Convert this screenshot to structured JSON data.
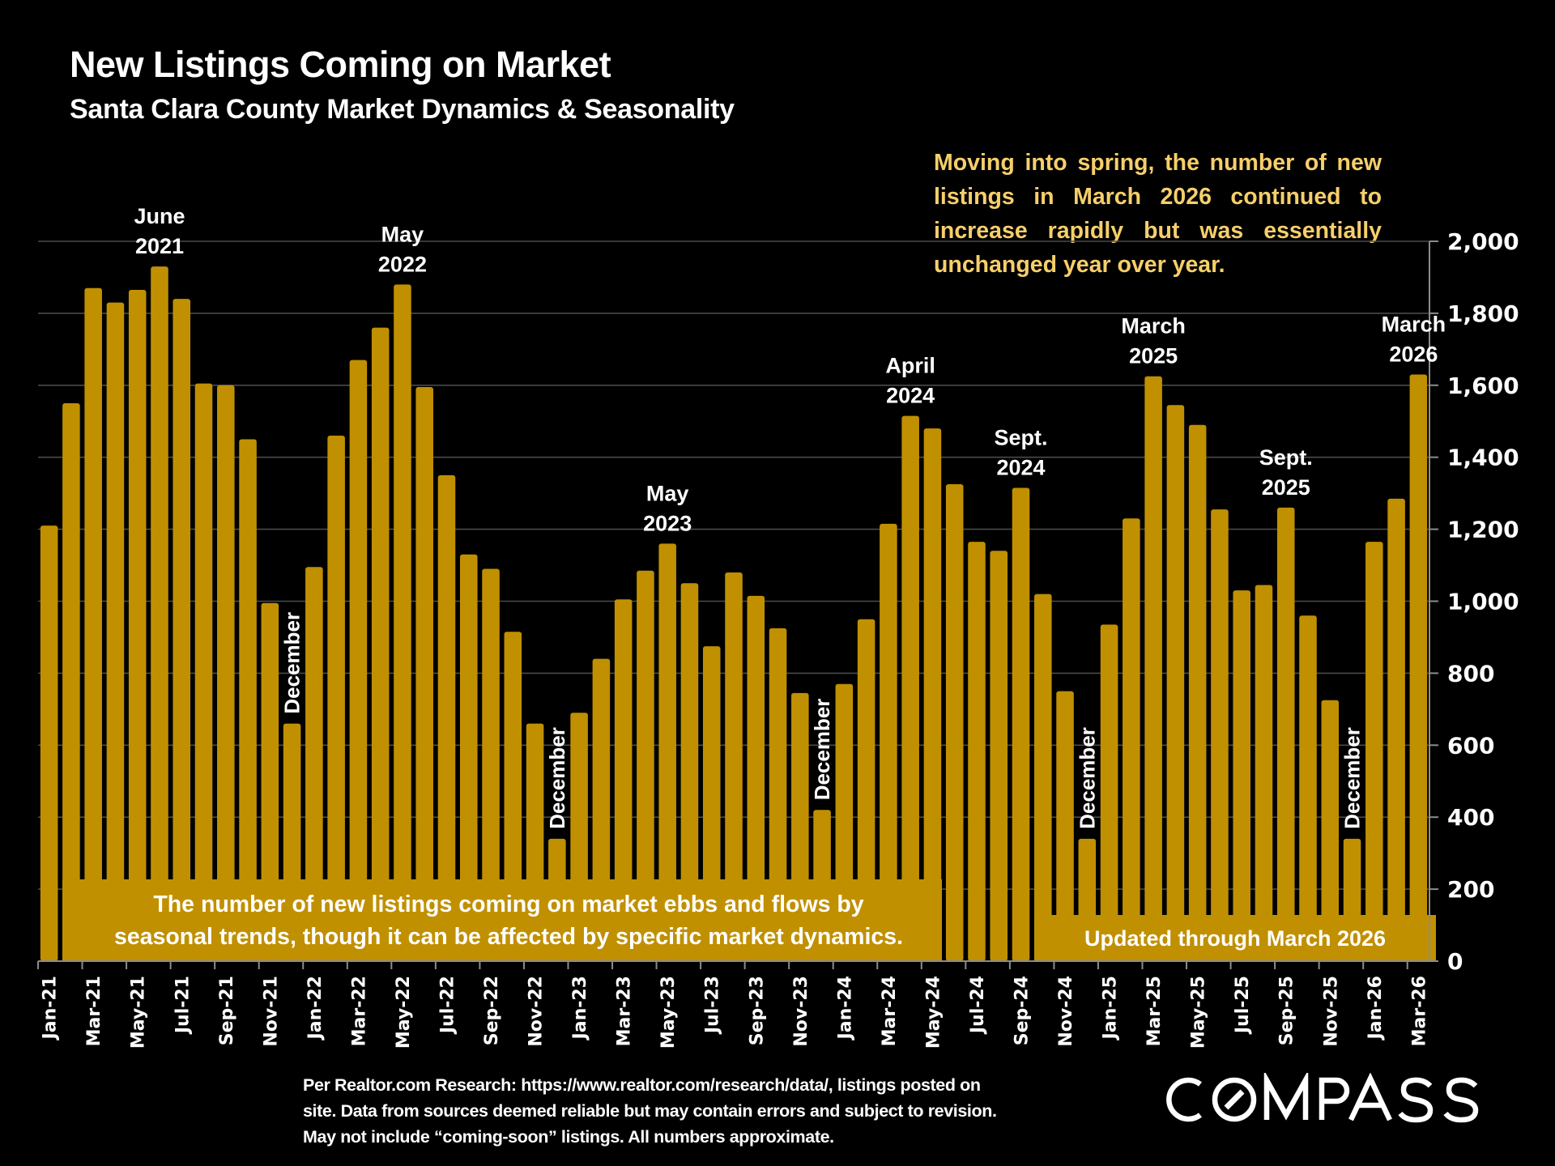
{
  "header": {
    "title": "New Listings Coming on Market",
    "subtitle": "Santa Clara County Market Dynamics & Seasonality"
  },
  "note": "Moving into spring, the number of new listings in March 2026 continued to increase rapidly but was essentially unchanged year over year.",
  "footnote": {
    "lines": [
      "Per Realtor.com Research:  https://www.realtor.com/research/data/, listings posted on",
      "site. Data from sources deemed reliable but may contain errors and subject to revision.",
      "May not include “coming-soon” listings. All numbers approximate."
    ]
  },
  "logo": {
    "text": "COMPASS",
    "icon": "compass-o-slash-icon"
  },
  "colors": {
    "bar": "#c09000",
    "background": "#000000",
    "note_text": "#f6cf6b",
    "grid": "#4a4a4a",
    "axis": "#8c8c8c"
  },
  "chart_data": {
    "type": "bar",
    "title": "New Listings Coming on Market",
    "subtitle": "Santa Clara County Market Dynamics & Seasonality",
    "xlabel": "",
    "ylabel": "",
    "ylim": [
      0,
      2000
    ],
    "y_ticks": [
      0,
      200,
      400,
      600,
      800,
      1000,
      1200,
      1400,
      1600,
      1800,
      2000
    ],
    "y_tick_labels": [
      "0",
      "200",
      "400",
      "600",
      "800",
      "1,000",
      "1,200",
      "1,400",
      "1,600",
      "1,800",
      "2,000"
    ],
    "y_axis_side": "right",
    "grid": true,
    "legend": "none",
    "categories": [
      "Jan-21",
      "Feb-21",
      "Mar-21",
      "Apr-21",
      "May-21",
      "Jun-21",
      "Jul-21",
      "Aug-21",
      "Sep-21",
      "Oct-21",
      "Nov-21",
      "Dec-21",
      "Jan-22",
      "Feb-22",
      "Mar-22",
      "Apr-22",
      "May-22",
      "Jun-22",
      "Jul-22",
      "Aug-22",
      "Sep-22",
      "Oct-22",
      "Nov-22",
      "Dec-22",
      "Jan-23",
      "Feb-23",
      "Mar-23",
      "Apr-23",
      "May-23",
      "Jun-23",
      "Jul-23",
      "Aug-23",
      "Sep-23",
      "Oct-23",
      "Nov-23",
      "Dec-23",
      "Jan-24",
      "Feb-24",
      "Mar-24",
      "Apr-24",
      "May-24",
      "Jun-24",
      "Jul-24",
      "Aug-24",
      "Sep-24",
      "Oct-24",
      "Nov-24",
      "Dec-24",
      "Jan-25",
      "Feb-25",
      "Mar-25",
      "Apr-25",
      "May-25",
      "Jun-25",
      "Jul-25",
      "Aug-25",
      "Sep-25",
      "Oct-25",
      "Nov-25",
      "Dec-25",
      "Jan-26",
      "Feb-26",
      "Mar-26"
    ],
    "x_tick_every": 2,
    "values": [
      1210,
      1550,
      1870,
      1830,
      1865,
      1930,
      1840,
      1605,
      1600,
      1450,
      995,
      660,
      1095,
      1460,
      1670,
      1760,
      1880,
      1595,
      1350,
      1130,
      1090,
      915,
      660,
      340,
      690,
      840,
      1005,
      1085,
      1160,
      1050,
      875,
      1080,
      1015,
      925,
      745,
      420,
      770,
      950,
      1215,
      1515,
      1480,
      1325,
      1165,
      1140,
      1315,
      1020,
      750,
      340,
      935,
      1230,
      1625,
      1545,
      1490,
      1255,
      1030,
      1045,
      1260,
      960,
      725,
      340,
      1165,
      1285,
      1630
    ],
    "annotations": [
      {
        "text": "June\n2021",
        "category": "Jun-21",
        "type": "peak"
      },
      {
        "text": "May\n2022",
        "category": "May-22",
        "type": "peak"
      },
      {
        "text": "May\n2023",
        "category": "May-23",
        "type": "peak"
      },
      {
        "text": "April\n2024",
        "category": "Apr-24",
        "type": "peak"
      },
      {
        "text": "Sept.\n2024",
        "category": "Sep-24",
        "type": "peak"
      },
      {
        "text": "March\n2025",
        "category": "Mar-25",
        "type": "peak"
      },
      {
        "text": "Sept.\n2025",
        "category": "Sep-25",
        "type": "peak"
      },
      {
        "text": "March\n2026",
        "category": "Mar-26",
        "type": "peak"
      },
      {
        "text": "December",
        "category": "Dec-21",
        "type": "trough"
      },
      {
        "text": "December",
        "category": "Dec-22",
        "type": "trough"
      },
      {
        "text": "December",
        "category": "Dec-23",
        "type": "trough"
      },
      {
        "text": "December",
        "category": "Dec-24",
        "type": "trough"
      },
      {
        "text": "December",
        "category": "Dec-25",
        "type": "trough"
      }
    ],
    "callout_boxes": [
      {
        "text_lines": [
          "The number of new listings coming on market ebbs and flows by",
          "seasonal trends, though it can be affected by specific market dynamics."
        ],
        "position": "bottom-left"
      },
      {
        "text_lines": [
          "Updated through March 2026"
        ],
        "position": "bottom-right"
      }
    ]
  }
}
